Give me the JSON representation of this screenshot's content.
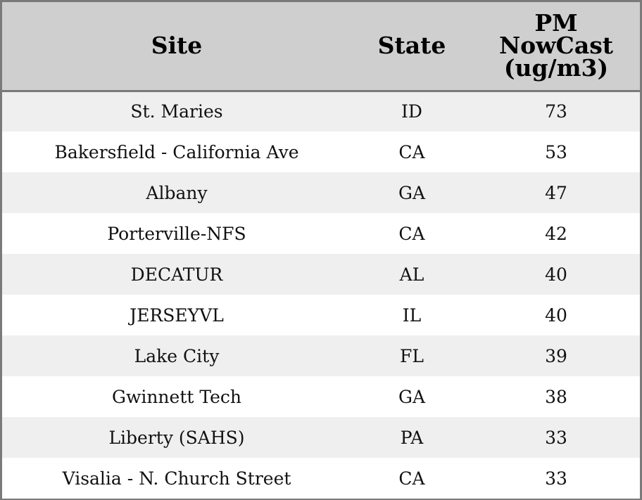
{
  "chart_data": {
    "type": "table",
    "columns": [
      "Site",
      "State",
      "PM\nNowCast\n(ug/m3)"
    ],
    "rows": [
      [
        "St. Maries",
        "ID",
        "73"
      ],
      [
        "Bakersfield - California Ave",
        "CA",
        "53"
      ],
      [
        "Albany",
        "GA",
        "47"
      ],
      [
        "Porterville-NFS",
        "CA",
        "42"
      ],
      [
        "DECATUR",
        "AL",
        "40"
      ],
      [
        "JERSEYVL",
        "IL",
        "40"
      ],
      [
        "Lake City",
        "FL",
        "39"
      ],
      [
        "Gwinnett Tech",
        "GA",
        "38"
      ],
      [
        "Liberty (SAHS)",
        "PA",
        "33"
      ],
      [
        "Visalia - N. Church Street",
        "CA",
        "33"
      ]
    ],
    "colors": {
      "header_background": "#cfcfcf",
      "row_stripe": "#efefef",
      "row_plain": "#ffffff",
      "border": "#7a7a7a"
    }
  }
}
